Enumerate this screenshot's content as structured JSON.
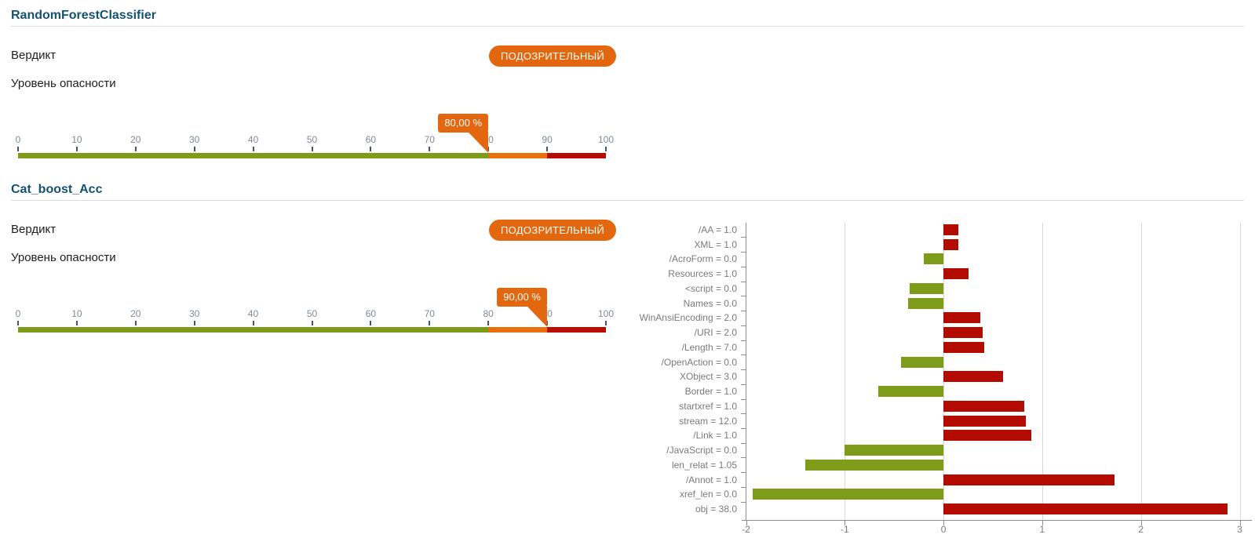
{
  "colors": {
    "accent_orange": "#e2670f",
    "gauge_green": "#7f9b1a",
    "gauge_orange": "#e8700f",
    "gauge_red": "#b70d02",
    "bar_positive_red": "#b30b00",
    "bar_negative_green": "#7f9b1a",
    "title_blue": "#155170"
  },
  "sections": [
    {
      "title": "RandomForestClassifier",
      "verdict_label": "Вердикт",
      "verdict_value": "ПОДОЗРИТЕЛЬНЫЙ",
      "danger_label": "Уровень опасности",
      "gauge": {
        "min": 0,
        "max": 100,
        "ticks": [
          0,
          10,
          20,
          30,
          40,
          50,
          60,
          70,
          80,
          90,
          100
        ],
        "value": 80,
        "value_label": "80,00 %",
        "zones": [
          {
            "from": 0,
            "to": 80,
            "color": "#7f9b1a"
          },
          {
            "from": 80,
            "to": 90,
            "color": "#e8700f"
          },
          {
            "from": 90,
            "to": 100,
            "color": "#b70d02"
          }
        ]
      }
    },
    {
      "title": "Cat_boost_Acc",
      "verdict_label": "Вердикт",
      "verdict_value": "ПОДОЗРИТЕЛЬНЫЙ",
      "danger_label": "Уровень опасности",
      "gauge": {
        "min": 0,
        "max": 100,
        "ticks": [
          0,
          10,
          20,
          30,
          40,
          50,
          60,
          70,
          80,
          90,
          100
        ],
        "value": 90,
        "value_label": "90,00 %",
        "zones": [
          {
            "from": 0,
            "to": 80,
            "color": "#7f9b1a"
          },
          {
            "from": 80,
            "to": 90,
            "color": "#e8700f"
          },
          {
            "from": 90,
            "to": 100,
            "color": "#b70d02"
          }
        ]
      }
    }
  ],
  "chart_data": {
    "type": "bar",
    "orientation": "horizontal",
    "title": "",
    "xlabel": "",
    "ylabel": "",
    "categories": [
      "/AA = 1.0",
      "XML = 1.0",
      "/AcroForm = 0.0",
      "Resources = 1.0",
      "<script = 0.0",
      "Names = 0.0",
      "WinAnsiEncoding = 2.0",
      "/URI = 2.0",
      "/Length = 7.0",
      "/OpenAction = 0.0",
      "XObject = 3.0",
      "Border = 1.0",
      "startxref = 1.0",
      "stream = 12.0",
      "/Link = 1.0",
      "/JavaScript = 0.0",
      "len_relat = 1.05",
      "/Annot = 1.0",
      "xref_len = 0.0",
      "obj = 38.0"
    ],
    "values": [
      0.15,
      0.15,
      -0.2,
      0.25,
      -0.34,
      -0.36,
      0.37,
      0.4,
      0.41,
      -0.43,
      0.6,
      -0.66,
      0.82,
      0.83,
      0.89,
      -1.0,
      -1.4,
      1.73,
      -1.93,
      2.88
    ],
    "xlim": [
      -2,
      3
    ],
    "x_ticks": [
      -2,
      -1,
      0,
      1,
      2,
      3
    ],
    "positive_color": "#b30b00",
    "negative_color": "#7f9b1a",
    "grid": true,
    "legend": null
  }
}
